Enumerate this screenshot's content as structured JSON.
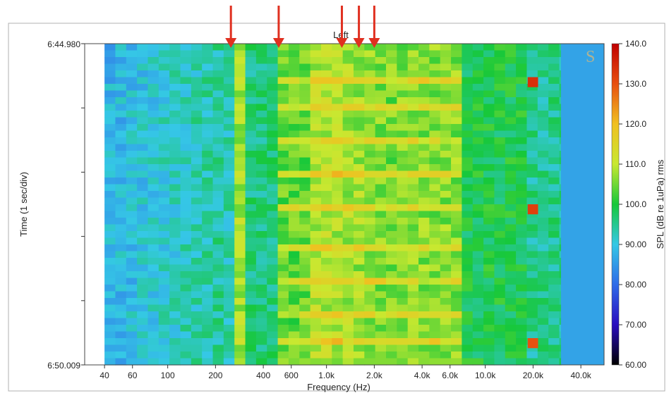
{
  "chart_data": {
    "type": "heatmap",
    "title": "Left",
    "xlabel": "Frequency (Hz)",
    "ylabel": "Time (1 sec/div)",
    "x_scale": "log",
    "x_ticks": [
      "40",
      "60",
      "100",
      "200",
      "400",
      "600",
      "1.0k",
      "2.0k",
      "4.0k",
      "6.0k",
      "10.0k",
      "20.0k",
      "40.0k"
    ],
    "x_tick_values": [
      40,
      60,
      100,
      200,
      400,
      600,
      1000,
      2000,
      4000,
      6000,
      10000,
      20000,
      40000
    ],
    "extra_x_ticks": [
      "600",
      "1.0k",
      "2.0k"
    ],
    "y_labels": {
      "top": "6:44.980",
      "bottom": "6:50.009"
    },
    "y_division_count": 5,
    "colorbar": {
      "label": "SPL (dB re 1uPa) rms",
      "ticks": [
        "140.0",
        "130.0",
        "120.0",
        "110.0",
        "100.0",
        "90.00",
        "80.00",
        "70.00",
        "60.00"
      ],
      "tick_values": [
        140,
        130,
        120,
        110,
        100,
        90,
        80,
        70,
        60
      ],
      "range": [
        60,
        140
      ],
      "colors": [
        "#000000",
        "#2a0cbf",
        "#2f6be8",
        "#35c8e6",
        "#17c83a",
        "#c8e830",
        "#f0c020",
        "#e85010",
        "#c00000"
      ]
    },
    "arrow_frequencies_hz": [
      250,
      500,
      1250,
      1600,
      2000
    ],
    "grid": false,
    "legend": "right colorbar"
  },
  "colors": {
    "arrow": "#e03020",
    "frame": "#333333"
  },
  "logo": "S"
}
